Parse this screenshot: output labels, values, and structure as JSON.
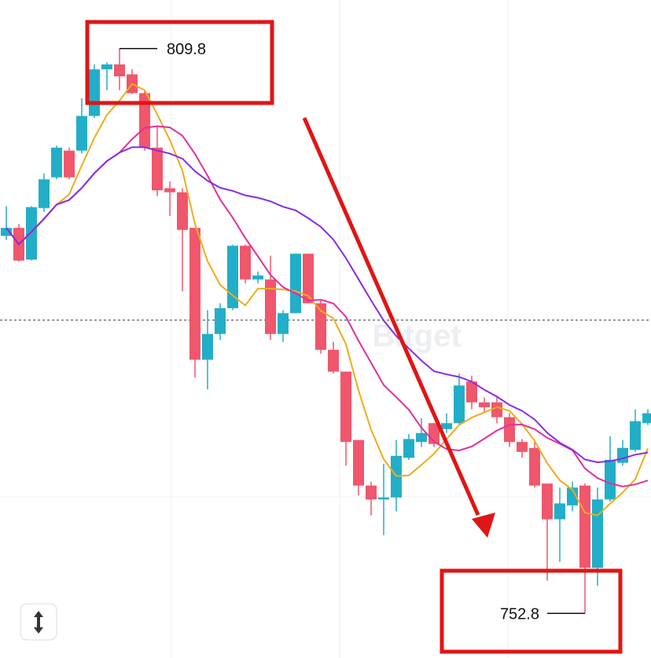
{
  "chart_data": {
    "type": "candlestick",
    "watermark": "Bitget",
    "ylim": [
      748.3,
      814.7
    ],
    "up_color": "#22aec8",
    "down_color": "#f0566c",
    "price_line": 782.4,
    "open": [
      790.9,
      791.7,
      788.5,
      793.7,
      796.8,
      799.5,
      799.5,
      803.0,
      807.7,
      808.2,
      807.2,
      805.3,
      799.8,
      795.7,
      795.3,
      791.7,
      778.4,
      781.0,
      783.6,
      789.9,
      786.5,
      786.5,
      781.0,
      783.1,
      789.1,
      784.1,
      779.4,
      777.2,
      770.3,
      765.7,
      764.3,
      764.5,
      768.5,
      770.1,
      772.0,
      771.4,
      772.0,
      776.2,
      774.1,
      774.1,
      772.6,
      770.1,
      769.5,
      765.9,
      762.3,
      763.7,
      765.7,
      757.4,
      764.3,
      768.0,
      769.3,
      772.0
    ],
    "high": [
      793.9,
      792.1,
      793.9,
      797.2,
      800.0,
      799.8,
      804.8,
      808.2,
      808.4,
      809.8,
      807.7,
      805.6,
      802.0,
      796.4,
      795.7,
      791.7,
      783.4,
      784.1,
      790.0,
      790.0,
      787.3,
      788.9,
      783.4,
      789.1,
      789.1,
      784.5,
      780.2,
      777.2,
      770.3,
      766.1,
      767.9,
      770.3,
      770.9,
      772.5,
      772.0,
      773.0,
      777.0,
      776.8,
      774.6,
      774.6,
      773.0,
      770.4,
      770.1,
      765.9,
      765.5,
      766.1,
      765.9,
      765.5,
      770.7,
      770.3,
      773.4,
      773.4
    ],
    "low": [
      790.5,
      788.3,
      788.4,
      793.3,
      796.6,
      796.6,
      799.2,
      802.8,
      805.6,
      805.6,
      805.2,
      799.5,
      794.9,
      792.9,
      785.3,
      776.6,
      775.4,
      780.4,
      783.4,
      786.1,
      786.1,
      780.4,
      780.2,
      783.1,
      784.1,
      779.0,
      777.0,
      767.7,
      764.7,
      762.7,
      760.7,
      763.1,
      768.3,
      769.6,
      769.6,
      771.0,
      771.8,
      773.4,
      773.0,
      772.0,
      769.6,
      768.5,
      765.5,
      756.1,
      758.0,
      763.1,
      752.8,
      755.6,
      764.1,
      767.7,
      769.1,
      771.8
    ],
    "close": [
      791.7,
      788.4,
      793.8,
      796.6,
      799.8,
      796.8,
      803.0,
      807.7,
      808.2,
      807.0,
      805.3,
      799.8,
      795.5,
      795.3,
      791.5,
      778.4,
      781.0,
      783.6,
      789.9,
      786.5,
      786.9,
      781.0,
      783.1,
      789.1,
      784.1,
      779.4,
      777.2,
      770.1,
      765.7,
      764.3,
      764.5,
      768.7,
      770.4,
      771.0,
      769.9,
      772.0,
      775.8,
      774.1,
      773.6,
      772.6,
      770.1,
      769.1,
      765.7,
      762.3,
      763.9,
      765.5,
      757.4,
      764.3,
      768.3,
      769.5,
      772.2,
      773.0
    ],
    "moving_averages": [
      {
        "period": 5,
        "color": "#efac1a"
      },
      {
        "period": 10,
        "color": "#e0309f"
      },
      {
        "period": 20,
        "color": "#8a2be2"
      }
    ]
  }
}
